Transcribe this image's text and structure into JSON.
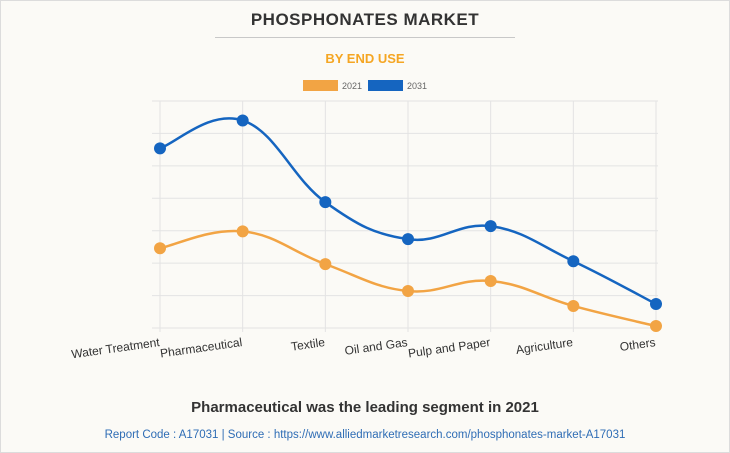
{
  "header": {
    "title": "PHOSPHONATES MARKET",
    "subtitle": "BY END USE"
  },
  "caption": "Pharmaceutical was the leading segment in 2021",
  "footer": {
    "text": "Report Code : A17031  |  Source : https://www.alliedmarketresearch.com/phosphonates-market-A17031"
  },
  "colors": {
    "series_2021": "#f2a444",
    "series_2031": "#1565c0",
    "grid": "#e3e3e3"
  },
  "chart_data": {
    "type": "line",
    "title": "PHOSPHONATES MARKET",
    "subtitle": "BY END USE",
    "xlabel": "",
    "ylabel": "",
    "categories": [
      "Water Treatment",
      "Pharmaceutical",
      "Textile",
      "Oil and Gas",
      "Pulp and Paper",
      "Agriculture",
      "Others"
    ],
    "ylim": [
      0,
      7
    ],
    "grid": true,
    "legend": "top-center",
    "series": [
      {
        "name": "2021",
        "color": "#f2a444",
        "values": [
          2.46,
          2.98,
          1.97,
          1.14,
          1.45,
          0.68,
          0.06
        ]
      },
      {
        "name": "2031",
        "color": "#1565c0",
        "values": [
          5.54,
          6.4,
          3.88,
          2.74,
          3.14,
          2.06,
          0.74
        ]
      }
    ]
  }
}
